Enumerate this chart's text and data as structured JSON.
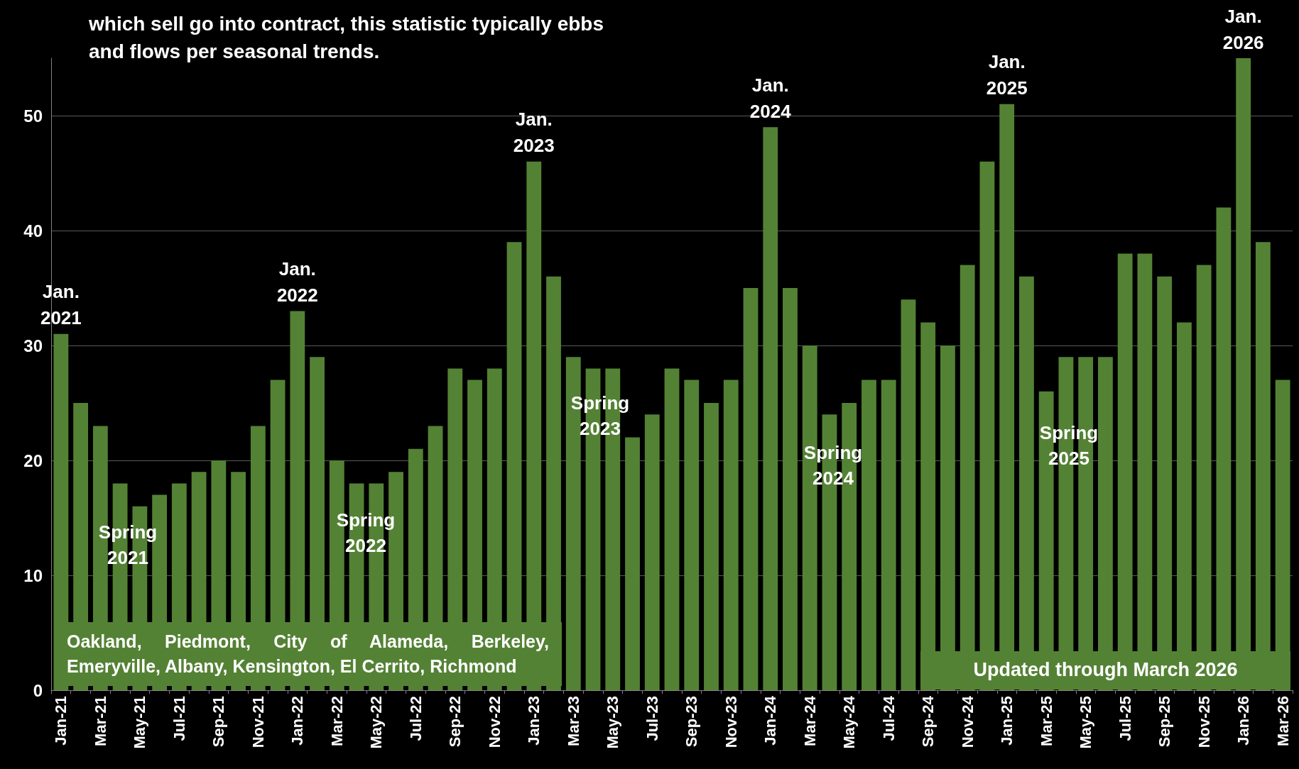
{
  "chart_data": {
    "type": "bar",
    "categories": [
      "Jan-21",
      null,
      "Mar-21",
      null,
      "May-21",
      null,
      "Jul-21",
      null,
      "Sep-21",
      null,
      "Nov-21",
      null,
      "Jan-22",
      null,
      "Mar-22",
      null,
      "May-22",
      null,
      "Jul-22",
      null,
      "Sep-22",
      null,
      "Nov-22",
      null,
      "Jan-23",
      null,
      "Mar-23",
      null,
      "May-23",
      null,
      "Jul-23",
      null,
      "Sep-23",
      null,
      "Nov-23",
      null,
      "Jan-24",
      null,
      "Mar-24",
      null,
      "May-24",
      null,
      "Jul-24",
      null,
      "Sep-24",
      null,
      "Nov-24",
      null,
      "Jan-25",
      null,
      "Mar-25",
      null,
      "May-25",
      null,
      "Jul-25",
      null,
      "Sep-25",
      null,
      "Nov-25",
      null,
      "Jan-26",
      null,
      "Mar-26"
    ],
    "values": [
      31,
      25,
      23,
      18,
      16,
      17,
      18,
      19,
      20,
      19,
      23,
      27,
      33,
      29,
      20,
      18,
      18,
      19,
      21,
      23,
      28,
      27,
      28,
      39,
      46,
      36,
      29,
      28,
      28,
      22,
      24,
      28,
      27,
      25,
      27,
      35,
      49,
      35,
      30,
      24,
      25,
      27,
      27,
      34,
      32,
      30,
      37,
      46,
      51,
      36,
      26,
      29,
      29,
      29,
      38,
      38,
      36,
      32,
      37,
      42,
      55,
      39,
      27
    ],
    "color": "#548235",
    "ylim": [
      0,
      55
    ],
    "yticks": [
      0,
      10,
      20,
      30,
      40,
      50
    ],
    "grid": "y",
    "annotations": [
      "which sell go into contract, this statistic typically ebbs and flows per seasonal trends.",
      "Oakland, Piedmont, City of Alameda, Berkeley, Emeryville, Albany, Kensington, El Cerrito, Richmond",
      "Updated through March 2026",
      {
        "text": "Jan.\n2021",
        "x": "Jan-21",
        "y": 31
      },
      {
        "text": "Jan.\n2022",
        "x": "Jan-22",
        "y": 33
      },
      {
        "text": "Jan.\n2023",
        "x": "Jan-23",
        "y": 46
      },
      {
        "text": "Jan.\n2024",
        "x": "Jan-24",
        "y": 49
      },
      {
        "text": "Jan.\n2025",
        "x": "Jan-25",
        "y": 51
      },
      {
        "text": "Jan.\n2026",
        "x": "Jan-26",
        "y": 55
      },
      "Spring\n2021",
      "Spring\n2022",
      "Spring\n2023",
      "Spring\n2024",
      "Spring\n2025"
    ]
  }
}
